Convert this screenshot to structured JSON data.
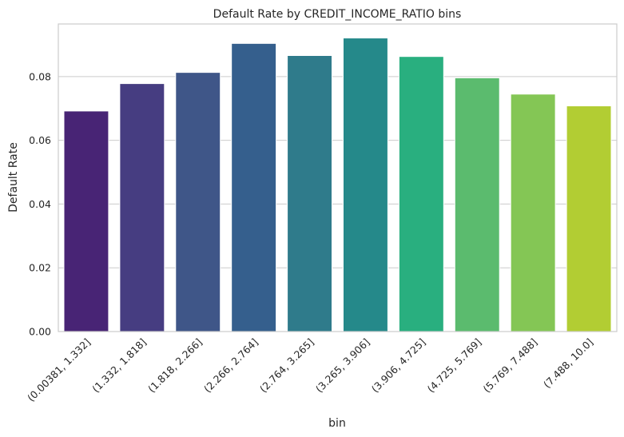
{
  "chart_data": {
    "type": "bar",
    "title": "Default Rate by CREDIT_INCOME_RATIO bins",
    "xlabel": "bin",
    "ylabel": "Default Rate",
    "categories": [
      "(0.00381, 1.332]",
      "(1.332, 1.818]",
      "(1.818, 2.266]",
      "(2.266, 2.764]",
      "(2.764, 3.265]",
      "(3.265, 3.906]",
      "(3.906, 4.725]",
      "(4.725, 5.769]",
      "(5.769, 7.488]",
      "(7.488, 10.0]"
    ],
    "values": [
      0.0692,
      0.0778,
      0.0813,
      0.0904,
      0.0866,
      0.0921,
      0.0863,
      0.0796,
      0.0745,
      0.0708
    ],
    "colors": [
      "#482475",
      "#463d81",
      "#3f5688",
      "#355f8d",
      "#2f7b8b",
      "#25898a",
      "#29af7f",
      "#5bbb6e",
      "#84c655",
      "#b2cd33"
    ],
    "ylim": [
      0,
      0.0965
    ],
    "yticks": [
      "0.00",
      "0.02",
      "0.04",
      "0.06",
      "0.08"
    ],
    "ytick_values": [
      0,
      0.02,
      0.04,
      0.06,
      0.08
    ],
    "grid": "horizontal"
  }
}
